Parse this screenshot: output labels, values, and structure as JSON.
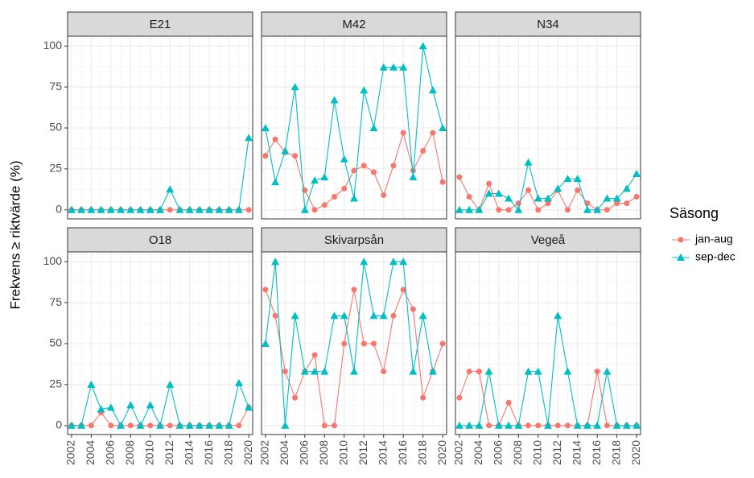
{
  "chart_data": {
    "type": "line",
    "y_label": "Frekvens ≥ riktvärde (%)",
    "legend_title": "Säsong",
    "x": [
      2002,
      2003,
      2004,
      2005,
      2006,
      2007,
      2008,
      2009,
      2010,
      2011,
      2012,
      2013,
      2014,
      2015,
      2016,
      2017,
      2018,
      2019,
      2020
    ],
    "xlim": [
      2001.6,
      2020.4
    ],
    "xticks": [
      2002,
      2004,
      2006,
      2008,
      2010,
      2012,
      2014,
      2016,
      2018,
      2020
    ],
    "ylim": [
      -5.5,
      106
    ],
    "yticks": [
      0,
      25,
      50,
      75,
      100
    ],
    "grid": true,
    "facets": [
      {
        "title": "E21",
        "series": [
          {
            "name": "jan-aug",
            "color": "#f8766d",
            "marker": "circle",
            "values": [
              0,
              0,
              0,
              0,
              0,
              0,
              0,
              0,
              0,
              0,
              0,
              0,
              0,
              0,
              0,
              0,
              0,
              0,
              0
            ]
          },
          {
            "name": "sep-dec",
            "color": "#00bfc4",
            "marker": "triangle",
            "values": [
              0,
              0,
              0,
              0,
              0,
              0,
              0,
              0,
              0,
              0,
              12.5,
              0,
              0,
              0,
              0,
              0,
              0,
              0,
              44
            ]
          }
        ]
      },
      {
        "title": "M42",
        "series": [
          {
            "name": "jan-aug",
            "color": "#f8766d",
            "marker": "circle",
            "values": [
              33,
              43,
              35,
              33,
              12,
              0,
              3,
              8,
              13,
              24,
              27,
              23,
              9,
              27,
              47,
              24,
              36,
              47,
              17
            ]
          },
          {
            "name": "sep-dec",
            "color": "#00bfc4",
            "marker": "triangle",
            "values": [
              50,
              17,
              36,
              75,
              0,
              18,
              20,
              67,
              31,
              7,
              73,
              50,
              87,
              87,
              87,
              20,
              100,
              73,
              50
            ]
          }
        ]
      },
      {
        "title": "N34",
        "series": [
          {
            "name": "jan-aug",
            "color": "#f8766d",
            "marker": "circle",
            "values": [
              20,
              8,
              0,
              16,
              0,
              0,
              4,
              12,
              0,
              4,
              12,
              0,
              12,
              4,
              0,
              0,
              4,
              4,
              8
            ]
          },
          {
            "name": "sep-dec",
            "color": "#00bfc4",
            "marker": "triangle",
            "values": [
              0,
              0,
              0,
              10,
              10,
              7,
              0,
              29,
              7,
              7,
              13,
              19,
              19,
              0,
              0,
              7,
              7,
              13,
              22
            ]
          }
        ]
      },
      {
        "title": "O18",
        "series": [
          {
            "name": "jan-aug",
            "color": "#f8766d",
            "marker": "circle",
            "values": [
              0,
              0,
              0,
              8,
              0,
              0,
              0,
              0,
              0,
              0,
              0,
              0,
              0,
              0,
              0,
              0,
              0,
              0,
              11
            ]
          },
          {
            "name": "sep-dec",
            "color": "#00bfc4",
            "marker": "triangle",
            "values": [
              0,
              0,
              25,
              10,
              11,
              0,
              12.5,
              0,
              12.5,
              0,
              25,
              0,
              0,
              0,
              0,
              0,
              0,
              26,
              11
            ]
          }
        ]
      },
      {
        "title": "Skivarpsån",
        "series": [
          {
            "name": "jan-aug",
            "color": "#f8766d",
            "marker": "circle",
            "values": [
              83,
              67,
              33,
              17,
              33,
              43,
              0,
              0,
              50,
              83,
              50,
              50,
              33,
              67,
              83,
              71,
              17,
              33,
              50
            ]
          },
          {
            "name": "sep-dec",
            "color": "#00bfc4",
            "marker": "triangle",
            "values": [
              50,
              100,
              0,
              67,
              33,
              33,
              33,
              67,
              67,
              33,
              100,
              67,
              67,
              100,
              100,
              33,
              67,
              33,
              null
            ]
          }
        ]
      },
      {
        "title": "Vegeå",
        "series": [
          {
            "name": "jan-aug",
            "color": "#f8766d",
            "marker": "circle",
            "values": [
              17,
              33,
              33,
              0,
              0,
              14,
              0,
              0,
              0,
              0,
              0,
              0,
              0,
              0,
              33,
              0,
              0,
              0,
              0
            ]
          },
          {
            "name": "sep-dec",
            "color": "#00bfc4",
            "marker": "triangle",
            "values": [
              0,
              0,
              0,
              33,
              0,
              0,
              0,
              33,
              33,
              0,
              67,
              33,
              0,
              0,
              0,
              33,
              0,
              0,
              0
            ]
          }
        ]
      }
    ]
  }
}
